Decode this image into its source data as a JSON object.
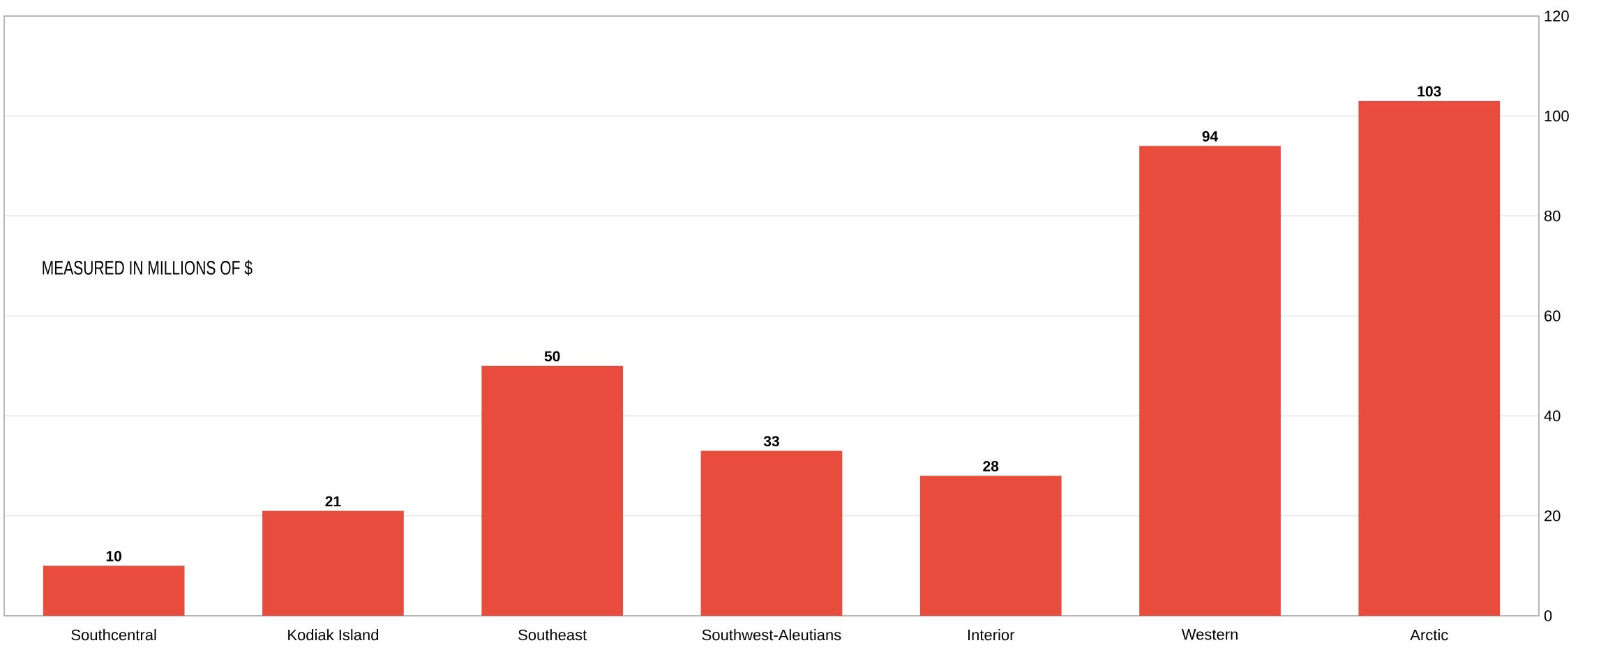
{
  "chart_data": {
    "type": "bar",
    "categories": [
      "Southcentral",
      "Kodiak Island",
      "Southeast",
      "Southwest-Aleutians",
      "Interior",
      "Western",
      "Arctic"
    ],
    "values": [
      10,
      21,
      50,
      33,
      28,
      94,
      103
    ],
    "color": "#e74c3c",
    "ylim": [
      0,
      120
    ],
    "yticks": [
      0,
      20,
      40,
      60,
      80,
      100,
      120
    ],
    "grid": "y",
    "data_labels": true,
    "annotations": [
      "MEASURED IN MILLIONS OF $"
    ]
  }
}
